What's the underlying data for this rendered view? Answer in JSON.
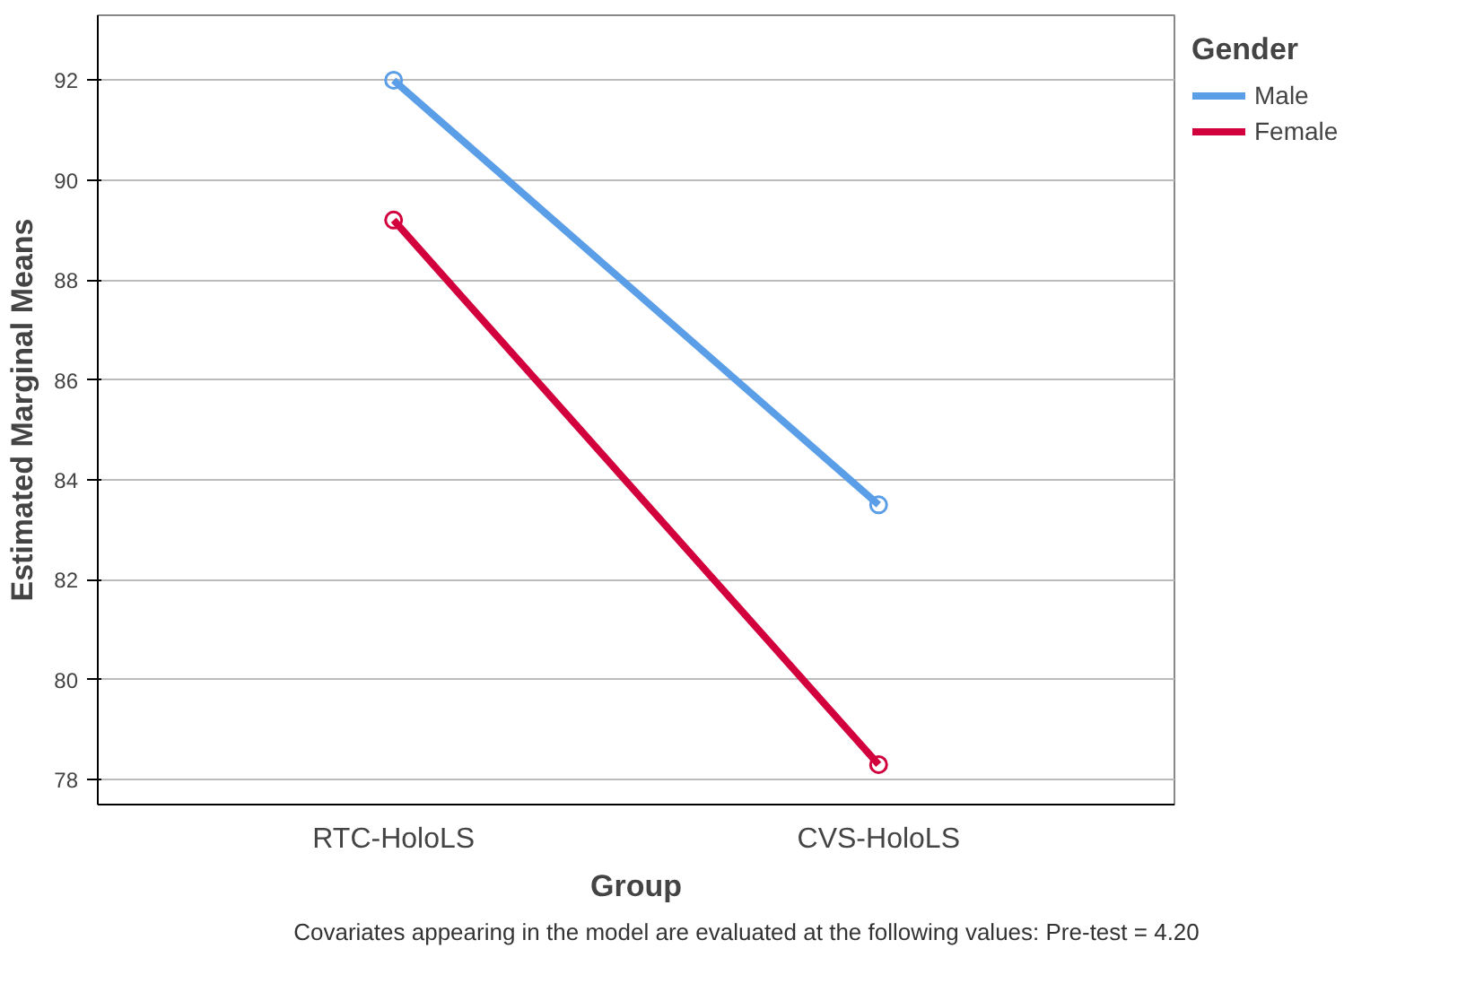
{
  "chart_data": {
    "type": "line",
    "xlabel": "Group",
    "ylabel": "Estimated Marginal Means",
    "legend_title": "Gender",
    "categories": [
      "RTC-HoloLS",
      "CVS-HoloLS"
    ],
    "series": [
      {
        "name": "Male",
        "color": "#5b9ee8",
        "values": [
          92.0,
          83.5
        ]
      },
      {
        "name": "Female",
        "color": "#d2003c",
        "values": [
          89.2,
          78.3
        ]
      }
    ],
    "ylim": [
      77.5,
      93.3
    ],
    "yticks": [
      78,
      80,
      82,
      84,
      86,
      88,
      90,
      92
    ],
    "grid": "y",
    "legend": "right",
    "marker": "circle",
    "line_style": "solid",
    "annotations": [
      "Covariates appearing in the model are evaluated at the following values: Pre-test = 4.20"
    ]
  }
}
